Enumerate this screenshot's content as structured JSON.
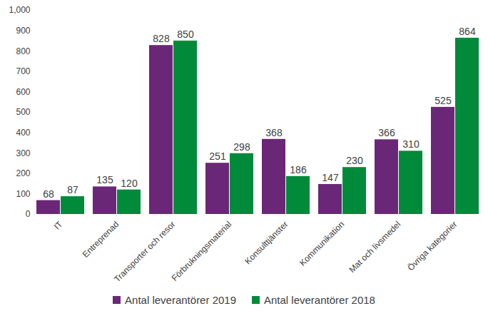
{
  "chart_data": {
    "type": "bar",
    "categories": [
      "IT",
      "Entreprenad",
      "Transporter och resor",
      "Förbrukningsmaterial",
      "Konsulttjänster",
      "Kommunikation",
      "Mat och livsmedel",
      "Övriga kategorier"
    ],
    "series": [
      {
        "name": "Antal leverantörer 2019",
        "color": "#6b2777",
        "values": [
          68,
          135,
          828,
          251,
          368,
          147,
          366,
          525
        ]
      },
      {
        "name": "Antal leverantörer 2018",
        "color": "#008a3a",
        "values": [
          87,
          120,
          850,
          298,
          186,
          230,
          310,
          864
        ]
      }
    ],
    "ylim": [
      0,
      1000
    ],
    "yticks": [
      0,
      100,
      200,
      300,
      400,
      500,
      600,
      700,
      800,
      900,
      1000
    ],
    "grid": false,
    "data_labels": true,
    "legend": "bottom"
  }
}
